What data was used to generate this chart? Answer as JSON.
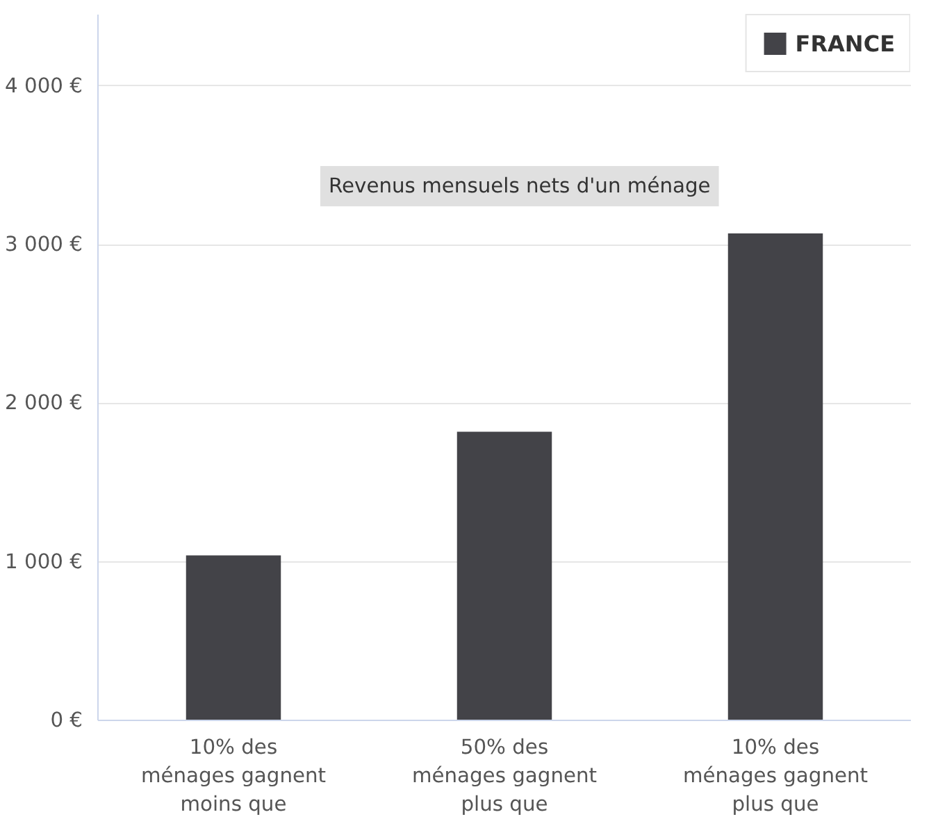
{
  "chart_data": {
    "type": "bar",
    "categories": [
      "10% des\nménages gagnent\nmoins que",
      "50% des\nménages gagnent\nplus que",
      "10% des\nménages gagnent\nplus que"
    ],
    "series": [
      {
        "name": "FRANCE",
        "color": "#434348",
        "values": [
          1040,
          1820,
          3070
        ]
      }
    ],
    "ylim": [
      0,
      4450
    ],
    "yticks": [
      {
        "value": 0,
        "label": "0 €"
      },
      {
        "value": 1000,
        "label": "1 000 €"
      },
      {
        "value": 2000,
        "label": "2 000 €"
      },
      {
        "value": 3000,
        "label": "3 000 €"
      },
      {
        "value": 4000,
        "label": "4 000 €"
      }
    ],
    "grid": "y",
    "legend": "top right",
    "annotations": [
      "Revenus mensuels nets d'un ménage"
    ]
  }
}
